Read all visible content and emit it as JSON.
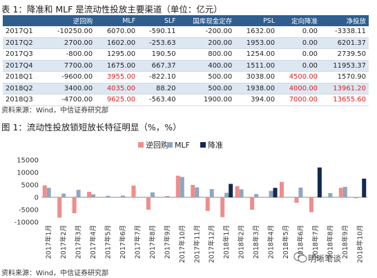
{
  "table_title": "表 1：降准和 MLF 是流动性投放主要渠道（单位：亿元）",
  "table": {
    "headers": [
      "",
      "逆回购",
      "MLF",
      "SLF",
      "国库现金定存",
      "PSL",
      "定向降准",
      "净投放"
    ],
    "rows": [
      [
        "2017Q1",
        "-10250.00",
        "6070.00",
        "-590.11",
        "-200.00",
        "1632.00",
        "0.00",
        "-3338.11"
      ],
      [
        "2017Q2",
        "2700.00",
        "1602.00",
        "-253.63",
        "200.00",
        "1953.00",
        "0.00",
        "6201.37"
      ],
      [
        "2017Q3",
        "-800.00",
        "1295.00",
        "190.50",
        "800.00",
        "1254.00",
        "0.00",
        "2739.50"
      ],
      [
        "2017Q4",
        "7700.00",
        "1675.00",
        "667.37",
        "400.00",
        "1511.00",
        "0.00",
        "11953.37"
      ],
      [
        "2018Q1",
        "-9600.00",
        "3955.00",
        "-822.10",
        "500.00",
        "3038.00",
        "4500.00",
        "1570.90"
      ],
      [
        "2018Q2",
        "3400.00",
        "4035.00",
        "88.20",
        "500.00",
        "1938.00",
        "4000.00",
        "13961.20"
      ],
      [
        "2018Q3",
        "-4700.00",
        "9625.00",
        "-563.40",
        "1900.00",
        "394.00",
        "7000.00",
        "13655.60"
      ]
    ],
    "red_cells": [
      [
        4,
        2
      ],
      [
        4,
        6
      ],
      [
        5,
        2
      ],
      [
        5,
        6
      ],
      [
        5,
        7
      ],
      [
        6,
        2
      ],
      [
        6,
        6
      ],
      [
        6,
        7
      ]
    ]
  },
  "table_source": "资料来源：Wind，中信证券研究部",
  "chart_title": "图 1：流动性投放锁短放长特征明显（%，%）",
  "chart_source": "资料来源：Wind，中信证券研究部",
  "watermark": "明晰笔谈",
  "colors": {
    "header_bg": "#2f5e8f",
    "row_alt": "#dde7f2",
    "reverse_repo": "#f08c8c",
    "mlf": "#8fa7be",
    "rrr": "#13294f",
    "red_text": "#e02020"
  },
  "chart_data": {
    "type": "bar",
    "categories": [
      "2017年1月",
      "2017年2月",
      "2017年3月",
      "2017年4月",
      "2017年5月",
      "2017年6月",
      "2017年7月",
      "2017年8月",
      "2017年9月",
      "2017年10月",
      "2017年11月",
      "2017年12月",
      "2018年1月",
      "2018年2月",
      "2018年3月",
      "2018年4月",
      "2018年5月",
      "2018年6月",
      "2018年7月",
      "2018年8月",
      "2018年9月",
      "2018年10月"
    ],
    "series": [
      {
        "name": "逆回购",
        "values": [
          4800,
          -8200,
          -6400,
          2200,
          0,
          0,
          4700,
          -5000,
          0,
          8700,
          5000,
          -5500,
          -8000,
          4500,
          -5000,
          0,
          6200,
          -2200,
          -6000,
          0,
          3800,
          -400
        ]
      },
      {
        "name": "MLF",
        "values": [
          3800,
          1500,
          3000,
          1200,
          600,
          700,
          0,
          2000,
          500,
          8200,
          4000,
          3300,
          1800,
          3200,
          1300,
          2600,
          0,
          3900,
          0,
          1700,
          4200,
          0
        ]
      },
      {
        "name": "降准",
        "values": [
          0,
          0,
          0,
          0,
          0,
          0,
          0,
          0,
          0,
          0,
          0,
          0,
          5400,
          0,
          0,
          3800,
          0,
          0,
          12000,
          0,
          0,
          7500
        ]
      }
    ],
    "yticks": [
      15000,
      10000,
      5000,
      0,
      -5000,
      -10000
    ],
    "ylim": [
      -10000,
      15000
    ],
    "legend": "top"
  }
}
